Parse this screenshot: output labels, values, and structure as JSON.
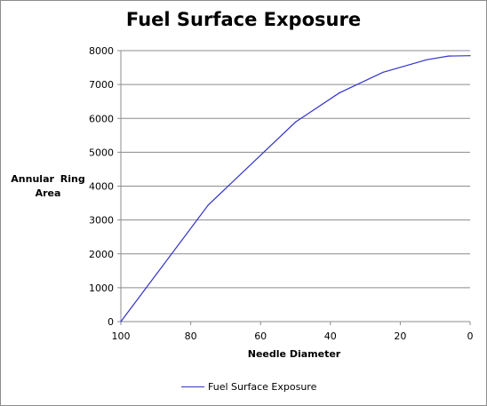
{
  "chart_data": {
    "type": "line",
    "title": "Fuel Surface Exposure",
    "xlabel": "Needle Diameter",
    "ylabel": "Annular Ring Area",
    "x_reversed": true,
    "xlim": [
      100,
      0
    ],
    "ylim": [
      0,
      8000
    ],
    "x_ticks": [
      100,
      80,
      60,
      40,
      20,
      0
    ],
    "y_ticks": [
      0,
      1000,
      2000,
      3000,
      4000,
      5000,
      6000,
      7000,
      8000
    ],
    "grid": "horizontal",
    "legend": "bottom",
    "series": [
      {
        "name": "Fuel Surface Exposure",
        "color": "#3333cc",
        "x": [
          100,
          75,
          50,
          37.5,
          25,
          12.5,
          6.25,
          0
        ],
        "y": [
          0,
          3440,
          5890,
          6750,
          7360,
          7730,
          7840,
          7850
        ]
      }
    ]
  }
}
